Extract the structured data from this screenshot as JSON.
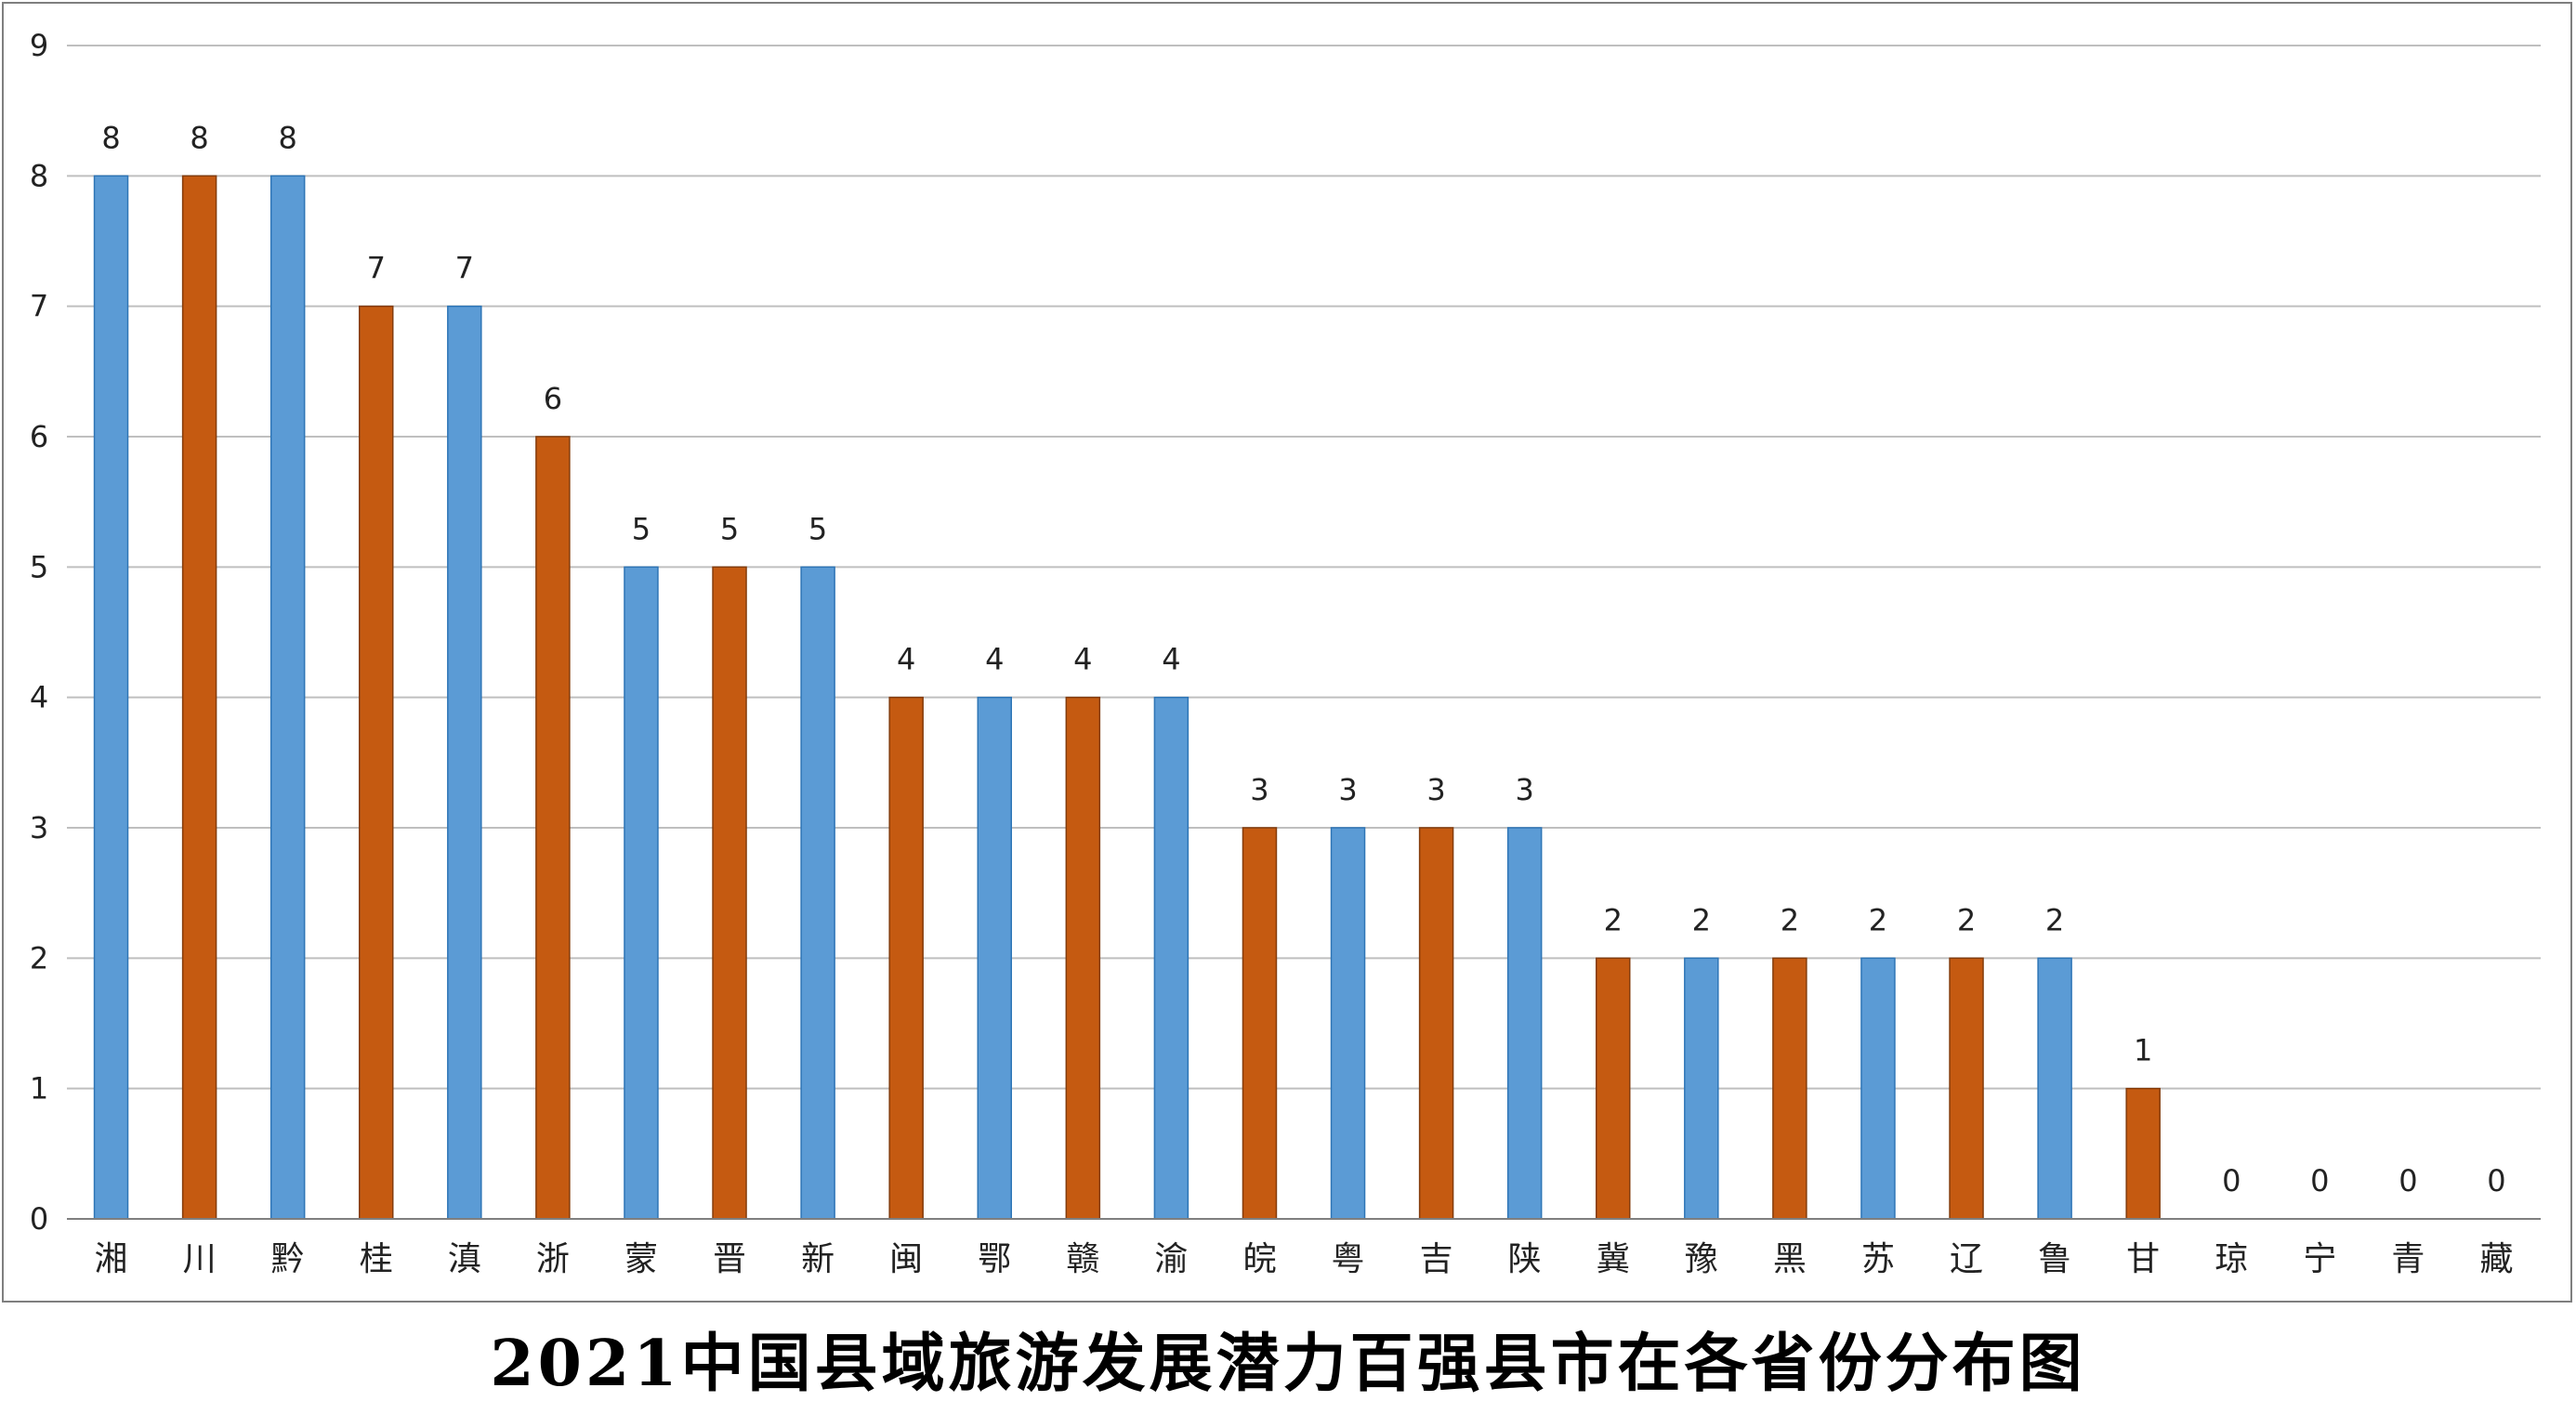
{
  "chart_data": {
    "type": "bar",
    "title": "2021中国县域旅游发展潜力百强县市在各省份分布图",
    "xlabel": "",
    "ylabel": "",
    "ylim": [
      0,
      9
    ],
    "yticks": [
      0,
      1,
      2,
      3,
      4,
      5,
      6,
      7,
      8,
      9
    ],
    "grid": true,
    "legend": "none",
    "data_labels": true,
    "categories": [
      "湘",
      "川",
      "黔",
      "桂",
      "滇",
      "浙",
      "蒙",
      "晋",
      "新",
      "闽",
      "鄂",
      "赣",
      "渝",
      "皖",
      "粤",
      "吉",
      "陕",
      "冀",
      "豫",
      "黑",
      "苏",
      "辽",
      "鲁",
      "甘",
      "琼",
      "宁",
      "青",
      "藏"
    ],
    "values": [
      8,
      8,
      8,
      7,
      7,
      6,
      5,
      5,
      5,
      4,
      4,
      4,
      4,
      3,
      3,
      3,
      3,
      2,
      2,
      2,
      2,
      2,
      2,
      1,
      0,
      0,
      0,
      0
    ],
    "bar_colors": [
      "#5b9bd5",
      "#c55a11"
    ],
    "colors": {
      "blue_bar": "#5b9bd5",
      "blue_edge": "#2e75b6",
      "orange_bar": "#c55a11",
      "orange_edge": "#843c0c",
      "grid": "#bfbfbf",
      "axis": "#7f7f7f"
    }
  }
}
